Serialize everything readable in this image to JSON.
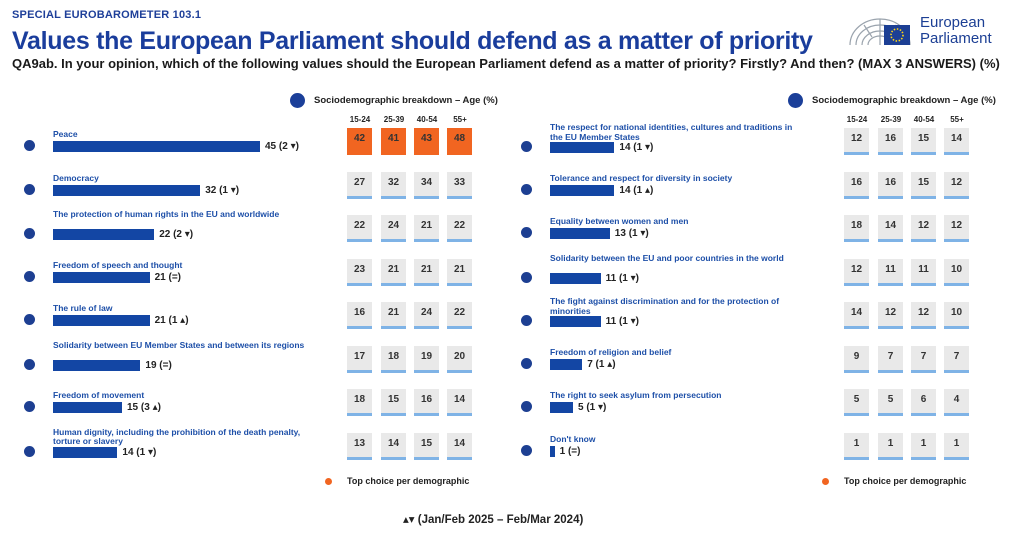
{
  "header": {
    "kicker": "SPECIAL EUROBAROMETER 103.1",
    "title": "Values the European Parliament should defend as a matter of priority",
    "question": "QA9ab. In your opinion, which of the following values should the European Parliament defend as a matter of priority? Firstly? And then? (MAX 3 ANSWERS) (%)"
  },
  "logo": {
    "line1": "European",
    "line2": "Parliament"
  },
  "breakdown_label": "Sociodemographic breakdown – Age (%)",
  "age_groups": [
    "15-24",
    "25-39",
    "40-54",
    "55+"
  ],
  "legend_label": "Top choice per demographic",
  "footnote": "▴▾ (Jan/Feb 2025 – Feb/Mar 2024)",
  "colors": {
    "bar": "#1346a4",
    "top_choice": "#f16521",
    "cell": "#e9e9e9",
    "cell_bar": "#7fb3e6"
  },
  "chart_data": {
    "type": "bar",
    "orientation": "horizontal",
    "unit": "%",
    "items": [
      {
        "label": "Peace",
        "value": 45,
        "change": "(2 ▾)",
        "age": [
          42,
          41,
          43,
          48
        ],
        "top": [
          true,
          true,
          true,
          true
        ]
      },
      {
        "label": "Democracy",
        "value": 32,
        "change": "(1 ▾)",
        "age": [
          27,
          32,
          34,
          33
        ],
        "top": [
          false,
          false,
          false,
          false
        ]
      },
      {
        "label": "The protection of human rights in the EU and worldwide",
        "value": 22,
        "change": "(2 ▾)",
        "age": [
          22,
          24,
          21,
          22
        ],
        "top": [
          false,
          false,
          false,
          false
        ]
      },
      {
        "label": "Freedom of speech and thought",
        "value": 21,
        "change": "(=)",
        "age": [
          23,
          21,
          21,
          21
        ],
        "top": [
          false,
          false,
          false,
          false
        ]
      },
      {
        "label": "The rule of law",
        "value": 21,
        "change": "(1 ▴)",
        "age": [
          16,
          21,
          24,
          22
        ],
        "top": [
          false,
          false,
          false,
          false
        ]
      },
      {
        "label": "Solidarity between EU Member States and between its regions",
        "value": 19,
        "change": "(=)",
        "age": [
          17,
          18,
          19,
          20
        ],
        "top": [
          false,
          false,
          false,
          false
        ]
      },
      {
        "label": "Freedom of movement",
        "value": 15,
        "change": "(3 ▴)",
        "age": [
          18,
          15,
          16,
          14
        ],
        "top": [
          false,
          false,
          false,
          false
        ]
      },
      {
        "label": "Human dignity, including the prohibition of the death penalty, torture or slavery",
        "value": 14,
        "change": "(1 ▾)",
        "age": [
          13,
          14,
          15,
          14
        ],
        "top": [
          false,
          false,
          false,
          false
        ]
      },
      {
        "label": "The respect for national identities, cultures and traditions in the EU Member States",
        "value": 14,
        "change": "(1 ▾)",
        "age": [
          12,
          16,
          15,
          14
        ],
        "top": [
          false,
          false,
          false,
          false
        ]
      },
      {
        "label": "Tolerance and respect for diversity in society",
        "value": 14,
        "change": "(1 ▴)",
        "age": [
          16,
          16,
          15,
          12
        ],
        "top": [
          false,
          false,
          false,
          false
        ]
      },
      {
        "label": "Equality between women and men",
        "value": 13,
        "change": "(1 ▾)",
        "age": [
          18,
          14,
          12,
          12
        ],
        "top": [
          false,
          false,
          false,
          false
        ]
      },
      {
        "label": "Solidarity between the EU and poor countries in the world",
        "value": 11,
        "change": "(1 ▾)",
        "age": [
          12,
          11,
          11,
          10
        ],
        "top": [
          false,
          false,
          false,
          false
        ]
      },
      {
        "label": "The fight against discrimination and for the protection of minorities",
        "value": 11,
        "change": "(1 ▾)",
        "age": [
          14,
          12,
          12,
          10
        ],
        "top": [
          false,
          false,
          false,
          false
        ]
      },
      {
        "label": "Freedom of religion and belief",
        "value": 7,
        "change": "(1 ▴)",
        "age": [
          9,
          7,
          7,
          7
        ],
        "top": [
          false,
          false,
          false,
          false
        ]
      },
      {
        "label": "The right to seek asylum from persecution",
        "value": 5,
        "change": "(1 ▾)",
        "age": [
          5,
          5,
          6,
          4
        ],
        "top": [
          false,
          false,
          false,
          false
        ]
      },
      {
        "label": "Don't know",
        "value": 1,
        "change": "(=)",
        "age": [
          1,
          1,
          1,
          1
        ],
        "top": [
          false,
          false,
          false,
          false
        ]
      }
    ]
  }
}
